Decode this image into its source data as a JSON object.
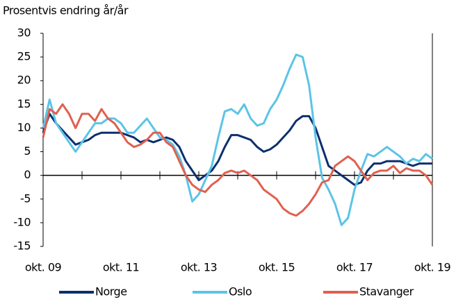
{
  "chart_data": {
    "type": "line",
    "subtitle": "Prosentvis endring år/år",
    "x": [
      "2009-10",
      "2009-12",
      "2010-02",
      "2010-04",
      "2010-06",
      "2010-08",
      "2010-10",
      "2010-12",
      "2011-02",
      "2011-04",
      "2011-06",
      "2011-08",
      "2011-10",
      "2011-12",
      "2012-02",
      "2012-04",
      "2012-06",
      "2012-08",
      "2012-10",
      "2012-12",
      "2013-02",
      "2013-04",
      "2013-06",
      "2013-08",
      "2013-10",
      "2013-12",
      "2014-02",
      "2014-04",
      "2014-06",
      "2014-08",
      "2014-10",
      "2014-12",
      "2015-02",
      "2015-04",
      "2015-06",
      "2015-08",
      "2015-10",
      "2015-12",
      "2016-02",
      "2016-04",
      "2016-06",
      "2016-08",
      "2016-10",
      "2016-12",
      "2017-02",
      "2017-04",
      "2017-06",
      "2017-08",
      "2017-10",
      "2017-12",
      "2018-02",
      "2018-04",
      "2018-06",
      "2018-08",
      "2018-10",
      "2018-12",
      "2019-02",
      "2019-04",
      "2019-06",
      "2019-08",
      "2019-10"
    ],
    "series": [
      {
        "name": "Norge",
        "color": "#0b2f6e",
        "values": [
          9,
          13,
          11,
          9.5,
          8,
          6.5,
          7,
          7.5,
          8.5,
          9,
          9,
          9,
          9,
          8.5,
          8,
          7,
          7.5,
          7,
          7.5,
          8,
          7.5,
          6,
          3,
          1,
          -1,
          0,
          1,
          3,
          6,
          8.5,
          8.5,
          8,
          7.5,
          6,
          5,
          5.5,
          6.5,
          8,
          9.5,
          11.5,
          12.5,
          12.5,
          10,
          6,
          2,
          1,
          0,
          -1,
          -2,
          -1.5,
          1,
          2.5,
          2.5,
          3,
          3,
          3,
          2.5,
          2,
          2.5,
          2.5,
          2.5
        ]
      },
      {
        "name": "Oslo",
        "color": "#5bc4e6",
        "values": [
          10,
          16,
          11,
          9,
          7,
          5,
          7,
          9,
          11,
          11,
          12,
          12,
          11,
          9,
          9,
          10.5,
          12,
          10,
          8,
          7.5,
          6.5,
          4,
          0,
          -5.5,
          -4,
          -1,
          2,
          8,
          13.5,
          14,
          13,
          15,
          12,
          10.5,
          11,
          14,
          16,
          19,
          22.5,
          25.5,
          25,
          19,
          8,
          -0.5,
          -3,
          -6,
          -10.5,
          -9,
          -3,
          1,
          4.5,
          4,
          5,
          6,
          5,
          4,
          2.5,
          3.5,
          3,
          4.5,
          3.5
        ]
      },
      {
        "name": "Stavanger",
        "color": "#e0604f",
        "values": [
          8,
          14,
          13,
          15,
          13,
          10,
          13,
          13,
          11.5,
          14,
          12,
          11,
          9,
          7,
          6,
          6.5,
          7.5,
          9,
          9,
          7,
          6,
          3,
          0,
          -2,
          -3,
          -3.5,
          -2,
          -1,
          0.5,
          1,
          0.5,
          1,
          0,
          -1,
          -3,
          -4,
          -5,
          -7,
          -8,
          -8.5,
          -7.5,
          -6,
          -4,
          -1.5,
          -1,
          2,
          3,
          4,
          3,
          1,
          -1,
          0.5,
          1,
          1,
          2,
          0.5,
          1.5,
          1,
          1,
          0,
          -2
        ]
      }
    ],
    "xlim": [
      "2009-10",
      "2019-10"
    ],
    "xticks": [
      {
        "value": "2009-10",
        "label": "okt. 09"
      },
      {
        "value": "2011-10",
        "label": "okt. 11"
      },
      {
        "value": "2013-10",
        "label": "okt. 13"
      },
      {
        "value": "2015-10",
        "label": "okt. 15"
      },
      {
        "value": "2017-10",
        "label": "okt. 17"
      },
      {
        "value": "2019-10",
        "label": "okt. 19"
      }
    ],
    "ylim": [
      -15,
      30
    ],
    "yticks": [
      -15,
      -10,
      -5,
      0,
      5,
      10,
      15,
      20,
      25,
      30
    ],
    "legend": "bottom"
  }
}
